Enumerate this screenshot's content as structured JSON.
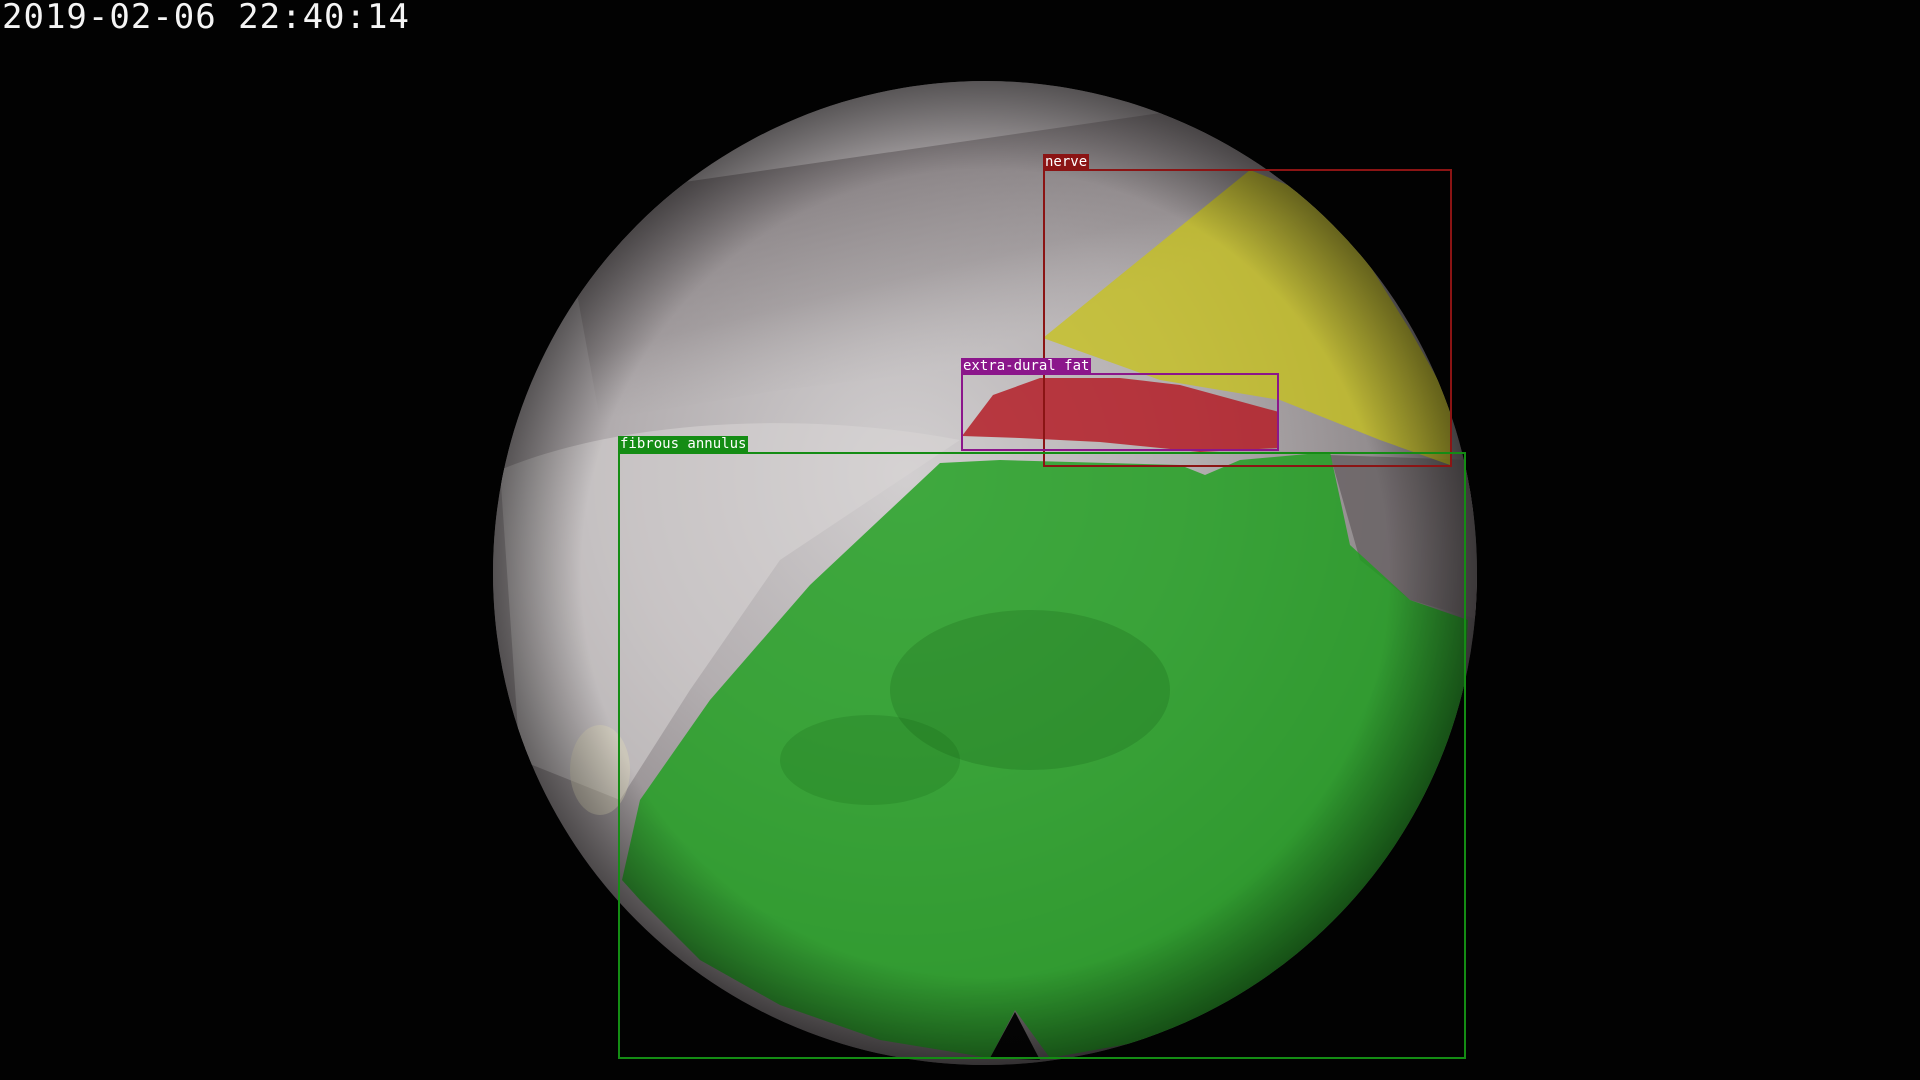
{
  "overlay": {
    "timestamp": "2019-02-06 22:40:14"
  },
  "annotations": [
    {
      "label": "nerve",
      "color": "#8b1414",
      "mask_color": "#c8c318"
    },
    {
      "label": "extra-dural fat",
      "color": "#8b168b",
      "mask_color": "#b41e28"
    },
    {
      "label": "fibrous annulus",
      "color": "#148c14",
      "mask_color": "#1ea01e"
    }
  ]
}
